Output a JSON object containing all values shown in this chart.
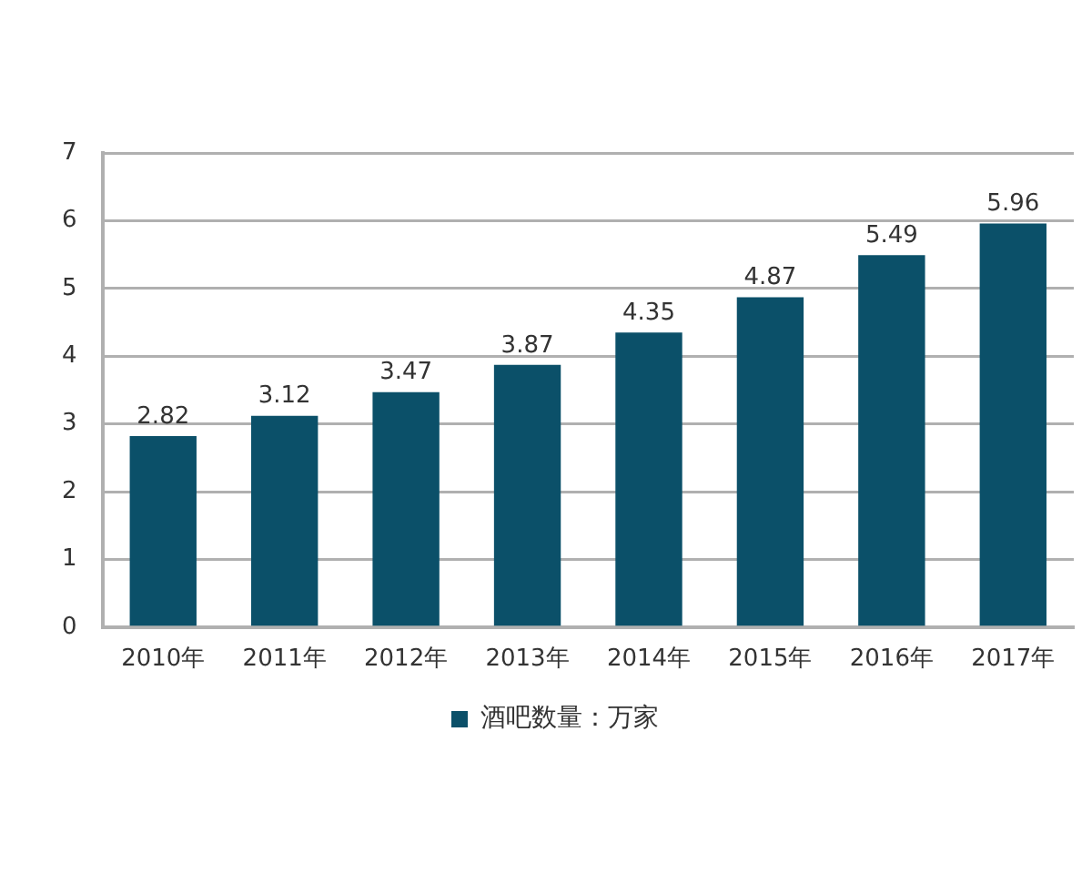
{
  "chart_data": {
    "type": "bar",
    "categories": [
      "2010年",
      "2011年",
      "2012年",
      "2013年",
      "2014年",
      "2015年",
      "2016年",
      "2017年"
    ],
    "series": [
      {
        "name": "酒吧数量：万家",
        "color": "#0b5069",
        "values": [
          2.82,
          3.12,
          3.47,
          3.87,
          4.35,
          4.87,
          5.49,
          5.96
        ]
      }
    ],
    "ylim": [
      0,
      7
    ],
    "yticks": [
      0,
      1,
      2,
      3,
      4,
      5,
      6,
      7
    ],
    "grid": "y",
    "legend": "bottom",
    "data_labels": true
  }
}
